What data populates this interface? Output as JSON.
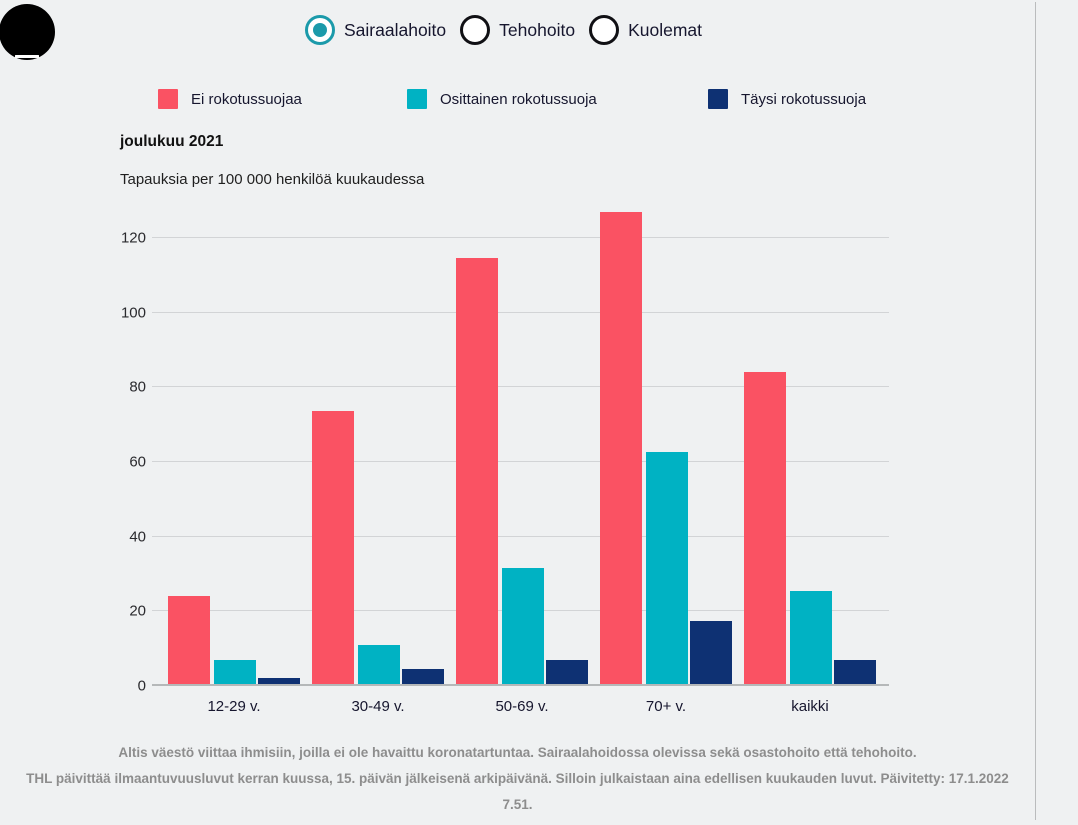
{
  "menu": {
    "icon": "hamburger-menu-icon"
  },
  "view_selector": {
    "options": [
      {
        "label": "Sairaalahoito",
        "selected": true
      },
      {
        "label": "Tehohoito",
        "selected": false
      },
      {
        "label": "Kuolemat",
        "selected": false
      }
    ]
  },
  "legend": {
    "items": [
      {
        "label": "Ei rokotussuojaa",
        "color": "#fa5263"
      },
      {
        "label": "Osittainen rokotussuoja",
        "color": "#00b2c3"
      },
      {
        "label": "Täysi rokotussuoja",
        "color": "#0e3173"
      }
    ]
  },
  "chart": {
    "title": "joulukuu 2021",
    "subtitle": "Tapauksia per 100 000 henkilöä kuukaudessa"
  },
  "chart_data": {
    "type": "bar",
    "title": "joulukuu 2021",
    "subtitle": "Tapauksia per 100 000 henkilöä kuukaudessa",
    "categories": [
      "12-29 v.",
      "30-49 v.",
      "50-69 v.",
      "70+ v.",
      "kaikki"
    ],
    "series": [
      {
        "name": "Ei rokotussuojaa",
        "color": "#fa5263",
        "values": [
          23.5,
          73,
          114,
          126.5,
          83.5
        ]
      },
      {
        "name": "Osittainen rokotussuoja",
        "color": "#00b2c3",
        "values": [
          6.5,
          10.5,
          31,
          62,
          25
        ]
      },
      {
        "name": "Täysi rokotussuoja",
        "color": "#0e3173",
        "values": [
          1.5,
          4,
          6.5,
          17,
          6.5
        ]
      }
    ],
    "yticks": [
      0,
      20,
      40,
      60,
      80,
      100,
      120
    ],
    "ylim": [
      0,
      130
    ],
    "grid": true,
    "legend_position": "top"
  },
  "footer": {
    "note1": "Altis väestö viittaa ihmisiin, joilla ei ole havaittu koronatartuntaa. Sairaalahoidossa olevissa sekä osastohoito että tehohoito.",
    "note2": "THL päivittää ilmaantuvuusluvut kerran kuussa, 15. päivän jälkeisenä arkipäivänä. Silloin julkaistaan aina edellisen kuukauden luvut. Päivitetty: 17.1.2022 7.51."
  }
}
